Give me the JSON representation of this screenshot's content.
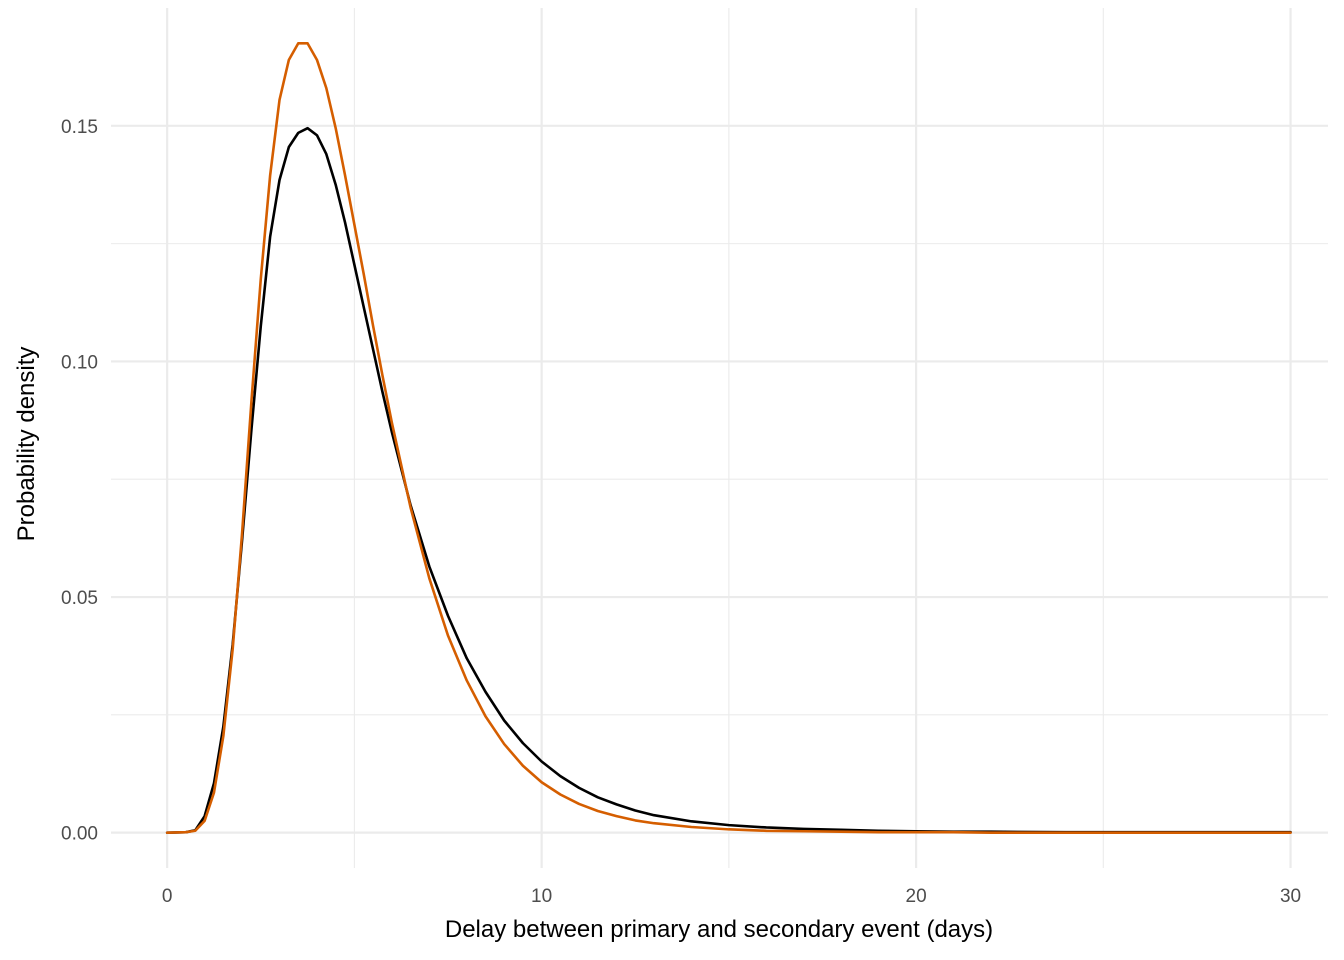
{
  "chart_data": {
    "type": "line",
    "title": "",
    "xlabel": "Delay between primary and secondary event (days)",
    "ylabel": "Probability density",
    "xlim": [
      -1.5,
      31.0
    ],
    "ylim": [
      -0.0075,
      0.175
    ],
    "x_ticks": [
      0,
      10,
      20,
      30
    ],
    "x_tick_labels": [
      "0",
      "10",
      "20",
      "30"
    ],
    "x_minor_ticks": [
      5,
      15,
      25
    ],
    "y_ticks": [
      0.0,
      0.05,
      0.1,
      0.15
    ],
    "y_tick_labels": [
      "0.00",
      "0.05",
      "0.10",
      "0.15"
    ],
    "y_minor_ticks": [
      0.025,
      0.075,
      0.125
    ],
    "grid": true,
    "legend": "none",
    "series": [
      {
        "color": "#000000",
        "x": [
          0,
          0.5,
          0.75,
          1.0,
          1.25,
          1.5,
          1.75,
          2.0,
          2.25,
          2.5,
          2.75,
          3.0,
          3.25,
          3.5,
          3.75,
          4.0,
          4.25,
          4.5,
          4.75,
          5.0,
          5.25,
          5.5,
          5.75,
          6.0,
          6.5,
          7.0,
          7.5,
          8.0,
          8.5,
          9.0,
          9.5,
          10.0,
          10.5,
          11.0,
          11.5,
          12.0,
          12.5,
          13.0,
          14.0,
          15.0,
          16.0,
          17.0,
          18.0,
          19.0,
          20.0,
          21.0,
          22.0,
          24.0,
          26.0,
          28.0,
          30.0
        ],
        "y": [
          0.0,
          0.0001,
          0.0005,
          0.0035,
          0.0105,
          0.0225,
          0.04,
          0.062,
          0.0855,
          0.1075,
          0.1265,
          0.1385,
          0.1455,
          0.1485,
          0.1495,
          0.148,
          0.144,
          0.1375,
          0.1295,
          0.1205,
          0.1115,
          0.1025,
          0.0935,
          0.085,
          0.0695,
          0.0565,
          0.046,
          0.037,
          0.0299,
          0.0238,
          0.019,
          0.0151,
          0.012,
          0.0095,
          0.0075,
          0.006,
          0.0047,
          0.0037,
          0.0024,
          0.0016,
          0.0011,
          0.0008,
          0.0006,
          0.0004,
          0.0003,
          0.0002,
          0.0002,
          0.0001,
          0.0001,
          0.0001,
          0.0001
        ]
      },
      {
        "color": "#D55E00",
        "x": [
          0,
          0.5,
          0.75,
          1.0,
          1.25,
          1.5,
          1.75,
          2.0,
          2.25,
          2.5,
          2.75,
          3.0,
          3.25,
          3.5,
          3.75,
          4.0,
          4.25,
          4.5,
          4.75,
          5.0,
          5.25,
          5.5,
          5.75,
          6.0,
          6.5,
          7.0,
          7.5,
          8.0,
          8.5,
          9.0,
          9.5,
          10.0,
          10.5,
          11.0,
          11.5,
          12.0,
          12.5,
          13.0,
          14.0,
          15.0,
          16.0,
          17.0,
          18.0,
          19.0,
          20.0,
          21.0,
          22.0,
          24.0,
          26.0,
          28.0,
          30.0
        ],
        "y": [
          0.0,
          0.0001,
          0.0004,
          0.0025,
          0.0085,
          0.0205,
          0.039,
          0.0635,
          0.0915,
          0.1175,
          0.1395,
          0.1555,
          0.164,
          0.1675,
          0.1675,
          0.164,
          0.158,
          0.1495,
          0.1395,
          0.129,
          0.1185,
          0.1075,
          0.097,
          0.087,
          0.069,
          0.054,
          0.0418,
          0.0323,
          0.0247,
          0.0188,
          0.0142,
          0.0107,
          0.0081,
          0.0061,
          0.0046,
          0.0035,
          0.0026,
          0.002,
          0.0012,
          0.0007,
          0.0004,
          0.0003,
          0.0002,
          0.0001,
          0.0001,
          0.0001,
          0.0,
          0.0,
          0.0,
          0.0,
          0.0
        ]
      }
    ]
  }
}
